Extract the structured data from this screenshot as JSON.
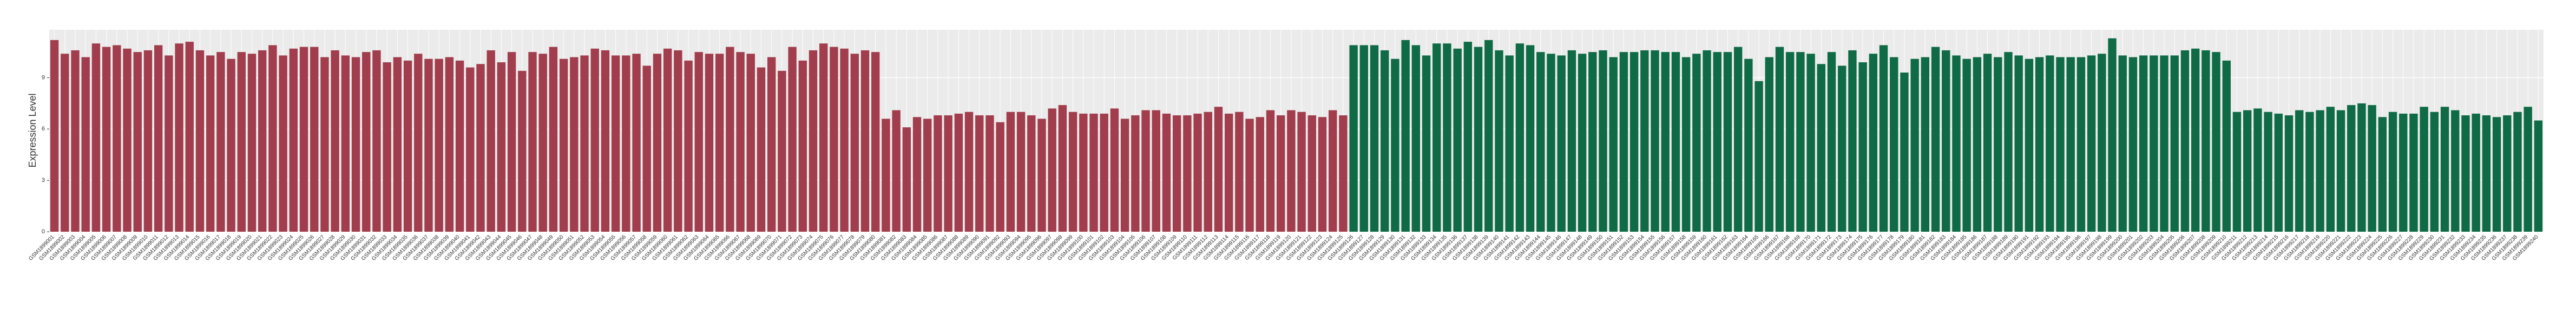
{
  "chart_data": {
    "type": "bar",
    "ylabel": "Expression Level",
    "ylim": [
      0,
      11.8
    ],
    "yticks": [
      0,
      3,
      6,
      9
    ],
    "grid": true,
    "categories": [
      "GSM1899001",
      "GSM1899002",
      "GSM1899003",
      "GSM1899004",
      "GSM1899005",
      "GSM1899006",
      "GSM1899007",
      "GSM1899008",
      "GSM1899009",
      "GSM1899010",
      "GSM1899011",
      "GSM1899012",
      "GSM1899013",
      "GSM1899014",
      "GSM1899015",
      "GSM1899016",
      "GSM1899017",
      "GSM1899018",
      "GSM1899019",
      "GSM1899020",
      "GSM1899021",
      "GSM1899022",
      "GSM1899023",
      "GSM1899024",
      "GSM1899025",
      "GSM1899026",
      "GSM1899027",
      "GSM1899028",
      "GSM1899029",
      "GSM1899030",
      "GSM1899031",
      "GSM1899032",
      "GSM1899033",
      "GSM1899034",
      "GSM1899035",
      "GSM1899036",
      "GSM1899037",
      "GSM1899038",
      "GSM1899039",
      "GSM1899040",
      "GSM1899041",
      "GSM1899042",
      "GSM1899043",
      "GSM1899044",
      "GSM1899045",
      "GSM1899046",
      "GSM1899047",
      "GSM1899048",
      "GSM1899049",
      "GSM1899050",
      "GSM1899051",
      "GSM1899052",
      "GSM1899053",
      "GSM1899054",
      "GSM1899055",
      "GSM1899056",
      "GSM1899057",
      "GSM1899058",
      "GSM1899059",
      "GSM1899060",
      "GSM1899061",
      "GSM1899062",
      "GSM1899063",
      "GSM1899064",
      "GSM1899065",
      "GSM1899066",
      "GSM1899067",
      "GSM1899068",
      "GSM1899069",
      "GSM1899070",
      "GSM1899071",
      "GSM1899072",
      "GSM1899073",
      "GSM1899074",
      "GSM1899075",
      "GSM1899076",
      "GSM1899077",
      "GSM1899078",
      "GSM1899079",
      "GSM1899080",
      "GSM1899081",
      "GSM1899082",
      "GSM1899083",
      "GSM1899084",
      "GSM1899085",
      "GSM1899086",
      "GSM1899087",
      "GSM1899088",
      "GSM1899089",
      "GSM1899090",
      "GSM1899091",
      "GSM1899092",
      "GSM1899093",
      "GSM1899094",
      "GSM1899095",
      "GSM1899096",
      "GSM1899097",
      "GSM1899098",
      "GSM1899099",
      "GSM1899100",
      "GSM1899101",
      "GSM1899102",
      "GSM1899103",
      "GSM1899104",
      "GSM1899105",
      "GSM1899106",
      "GSM1899107",
      "GSM1899108",
      "GSM1899109",
      "GSM1899110",
      "GSM1899111",
      "GSM1899112",
      "GSM1899113",
      "GSM1899114",
      "GSM1899115",
      "GSM1899116",
      "GSM1899117",
      "GSM1899118",
      "GSM1899119",
      "GSM1899120",
      "GSM1899121",
      "GSM1899122",
      "GSM1899123",
      "GSM1899124",
      "GSM1899125",
      "GSM1899126",
      "GSM1899127",
      "GSM1899128",
      "GSM1899129",
      "GSM1899130",
      "GSM1899131",
      "GSM1899132",
      "GSM1899133",
      "GSM1899134",
      "GSM1899135",
      "GSM1899136",
      "GSM1899137",
      "GSM1899138",
      "GSM1899139",
      "GSM1899140",
      "GSM1899141",
      "GSM1899142",
      "GSM1899143",
      "GSM1899144",
      "GSM1899145",
      "GSM1899146",
      "GSM1899147",
      "GSM1899148",
      "GSM1899149",
      "GSM1899150",
      "GSM1899151",
      "GSM1899152",
      "GSM1899153",
      "GSM1899154",
      "GSM1899155",
      "GSM1899156",
      "GSM1899157",
      "GSM1899158",
      "GSM1899159",
      "GSM1899160",
      "GSM1899161",
      "GSM1899162",
      "GSM1899163",
      "GSM1899164",
      "GSM1899165",
      "GSM1899166",
      "GSM1899167",
      "GSM1899168",
      "GSM1899169",
      "GSM1899170",
      "GSM1899171",
      "GSM1899172",
      "GSM1899173",
      "GSM1899174",
      "GSM1899175",
      "GSM1899176",
      "GSM1899177",
      "GSM1899178",
      "GSM1899179",
      "GSM1899180",
      "GSM1899181",
      "GSM1899182",
      "GSM1899183",
      "GSM1899184",
      "GSM1899185",
      "GSM1899186",
      "GSM1899187",
      "GSM1899188",
      "GSM1899189",
      "GSM1899190",
      "GSM1899191",
      "GSM1899192",
      "GSM1899193",
      "GSM1899194",
      "GSM1899195",
      "GSM1899196",
      "GSM1899197",
      "GSM1899198",
      "GSM1899199",
      "GSM1899200",
      "GSM1899201",
      "GSM1899202",
      "GSM1899203",
      "GSM1899204",
      "GSM1899205",
      "GSM1899206",
      "GSM1899207",
      "GSM1899208",
      "GSM1899209",
      "GSM1899210",
      "GSM1899211",
      "GSM1899212",
      "GSM1899213",
      "GSM1899214",
      "GSM1899215",
      "GSM1899216",
      "GSM1899217",
      "GSM1899218",
      "GSM1899219",
      "GSM1899220",
      "GSM1899221",
      "GSM1899222",
      "GSM1899223",
      "GSM1899224",
      "GSM1899225",
      "GSM1899226",
      "GSM1899227",
      "GSM1899228",
      "GSM1899229",
      "GSM1899230",
      "GSM1899231",
      "GSM1899232",
      "GSM1899233",
      "GSM1899234",
      "GSM1899235",
      "GSM1899236",
      "GSM1899237",
      "GSM1899238",
      "GSM1899239",
      "GSM1899240"
    ],
    "series": [
      {
        "color": "#a13d4c",
        "values": [
          11.2,
          10.4,
          10.6,
          10.2,
          11.0,
          10.8,
          10.9,
          10.7,
          10.5,
          10.6,
          10.9,
          10.3,
          11.0,
          11.1,
          10.6,
          10.3,
          10.5,
          10.1,
          10.5,
          10.4,
          10.6,
          10.9,
          10.3,
          10.7,
          10.8,
          10.8,
          10.2,
          10.6,
          10.3,
          10.2,
          10.5,
          10.6,
          9.9,
          10.2,
          10.0,
          10.4,
          10.1,
          10.1,
          10.2,
          10.0,
          9.6,
          9.8,
          10.6,
          9.9,
          10.5,
          9.4,
          10.5,
          10.4,
          10.8,
          10.1,
          10.2,
          10.3,
          10.7,
          10.6,
          10.3,
          10.3,
          10.4,
          9.7,
          10.4,
          10.7,
          10.6,
          10.0,
          10.5,
          10.4,
          10.4,
          10.8,
          10.5,
          10.4,
          9.6,
          10.2,
          9.4,
          10.8,
          10.0,
          10.6,
          11.0,
          10.8,
          10.7,
          10.4,
          10.6,
          10.5,
          6.6,
          7.1,
          6.1,
          6.7,
          6.6,
          6.8,
          6.8,
          6.9,
          7.0,
          6.8,
          6.8,
          6.4,
          7.0,
          7.0,
          6.8,
          6.6,
          7.2,
          7.4,
          7.0,
          6.9,
          6.9,
          6.9,
          7.2,
          6.6,
          6.8,
          7.1,
          7.1,
          6.9,
          6.8,
          6.8,
          6.9,
          7.0,
          7.3,
          6.9,
          7.0,
          6.6,
          6.7,
          7.1,
          6.8,
          7.1,
          7.0,
          6.8,
          6.7,
          7.1,
          6.8,
          null,
          null,
          null,
          null,
          null,
          null,
          null,
          null,
          null,
          null,
          null,
          null,
          null,
          null,
          null,
          null,
          null,
          null,
          null,
          null,
          null,
          null,
          null,
          null,
          null,
          null,
          null,
          null,
          null,
          null,
          null,
          null,
          null,
          null,
          null,
          null,
          null,
          null,
          null,
          null,
          null,
          null,
          null,
          null,
          null,
          null,
          null,
          null,
          null,
          null,
          null,
          null,
          null,
          null,
          null,
          null,
          null,
          null,
          null,
          null,
          null,
          null,
          null,
          null,
          null,
          null,
          null,
          null,
          null,
          null,
          null,
          null,
          null,
          null,
          null,
          null,
          null,
          null,
          null,
          null,
          null,
          null,
          null,
          null,
          null,
          null,
          null,
          null,
          null,
          null,
          null,
          null,
          null,
          null,
          null,
          null,
          null,
          null,
          null,
          null,
          null,
          null,
          null,
          null,
          null,
          null,
          null,
          null,
          null,
          null,
          null,
          null,
          null,
          null,
          null
        ]
      },
      {
        "color": "#0f6b45",
        "values": [
          null,
          null,
          null,
          null,
          null,
          null,
          null,
          null,
          null,
          null,
          null,
          null,
          null,
          null,
          null,
          null,
          null,
          null,
          null,
          null,
          null,
          null,
          null,
          null,
          null,
          null,
          null,
          null,
          null,
          null,
          null,
          null,
          null,
          null,
          null,
          null,
          null,
          null,
          null,
          null,
          null,
          null,
          null,
          null,
          null,
          null,
          null,
          null,
          null,
          null,
          null,
          null,
          null,
          null,
          null,
          null,
          null,
          null,
          null,
          null,
          null,
          null,
          null,
          null,
          null,
          null,
          null,
          null,
          null,
          null,
          null,
          null,
          null,
          null,
          null,
          null,
          null,
          null,
          null,
          null,
          null,
          null,
          null,
          null,
          null,
          null,
          null,
          null,
          null,
          null,
          null,
          null,
          null,
          null,
          null,
          null,
          null,
          null,
          null,
          null,
          null,
          null,
          null,
          null,
          null,
          null,
          null,
          null,
          null,
          null,
          null,
          null,
          null,
          null,
          null,
          null,
          null,
          null,
          null,
          null,
          null,
          null,
          null,
          null,
          null,
          10.9,
          10.9,
          10.9,
          10.6,
          10.1,
          11.2,
          10.9,
          10.3,
          11.0,
          11.0,
          10.7,
          11.1,
          10.8,
          11.2,
          10.6,
          10.3,
          11.0,
          10.9,
          10.5,
          10.4,
          10.3,
          10.6,
          10.4,
          10.5,
          10.6,
          10.2,
          10.5,
          10.5,
          10.6,
          10.6,
          10.5,
          10.5,
          10.2,
          10.4,
          10.6,
          10.5,
          10.5,
          10.8,
          10.1,
          8.8,
          10.2,
          10.8,
          10.5,
          10.5,
          10.4,
          9.8,
          10.5,
          9.7,
          10.6,
          9.9,
          10.4,
          10.9,
          10.2,
          9.3,
          10.1,
          10.2,
          10.8,
          10.6,
          10.3,
          10.1,
          10.2,
          10.4,
          10.2,
          10.5,
          10.3,
          10.1,
          10.2,
          10.3,
          10.2,
          10.2,
          10.2,
          10.3,
          10.4,
          11.3,
          10.3,
          10.2,
          10.3,
          10.3,
          10.3,
          10.3,
          10.6,
          10.7,
          10.6,
          10.5,
          10.0,
          7.0,
          7.1,
          7.2,
          7.0,
          6.9,
          6.8,
          7.1,
          7.0,
          7.1,
          7.3,
          7.1,
          7.4,
          7.5,
          7.4,
          6.7,
          7.0,
          6.9,
          6.9,
          7.3,
          7.0,
          7.3,
          7.1,
          6.8,
          6.9,
          6.8,
          6.7,
          6.8,
          7.0,
          7.3,
          6.5
        ]
      }
    ]
  }
}
